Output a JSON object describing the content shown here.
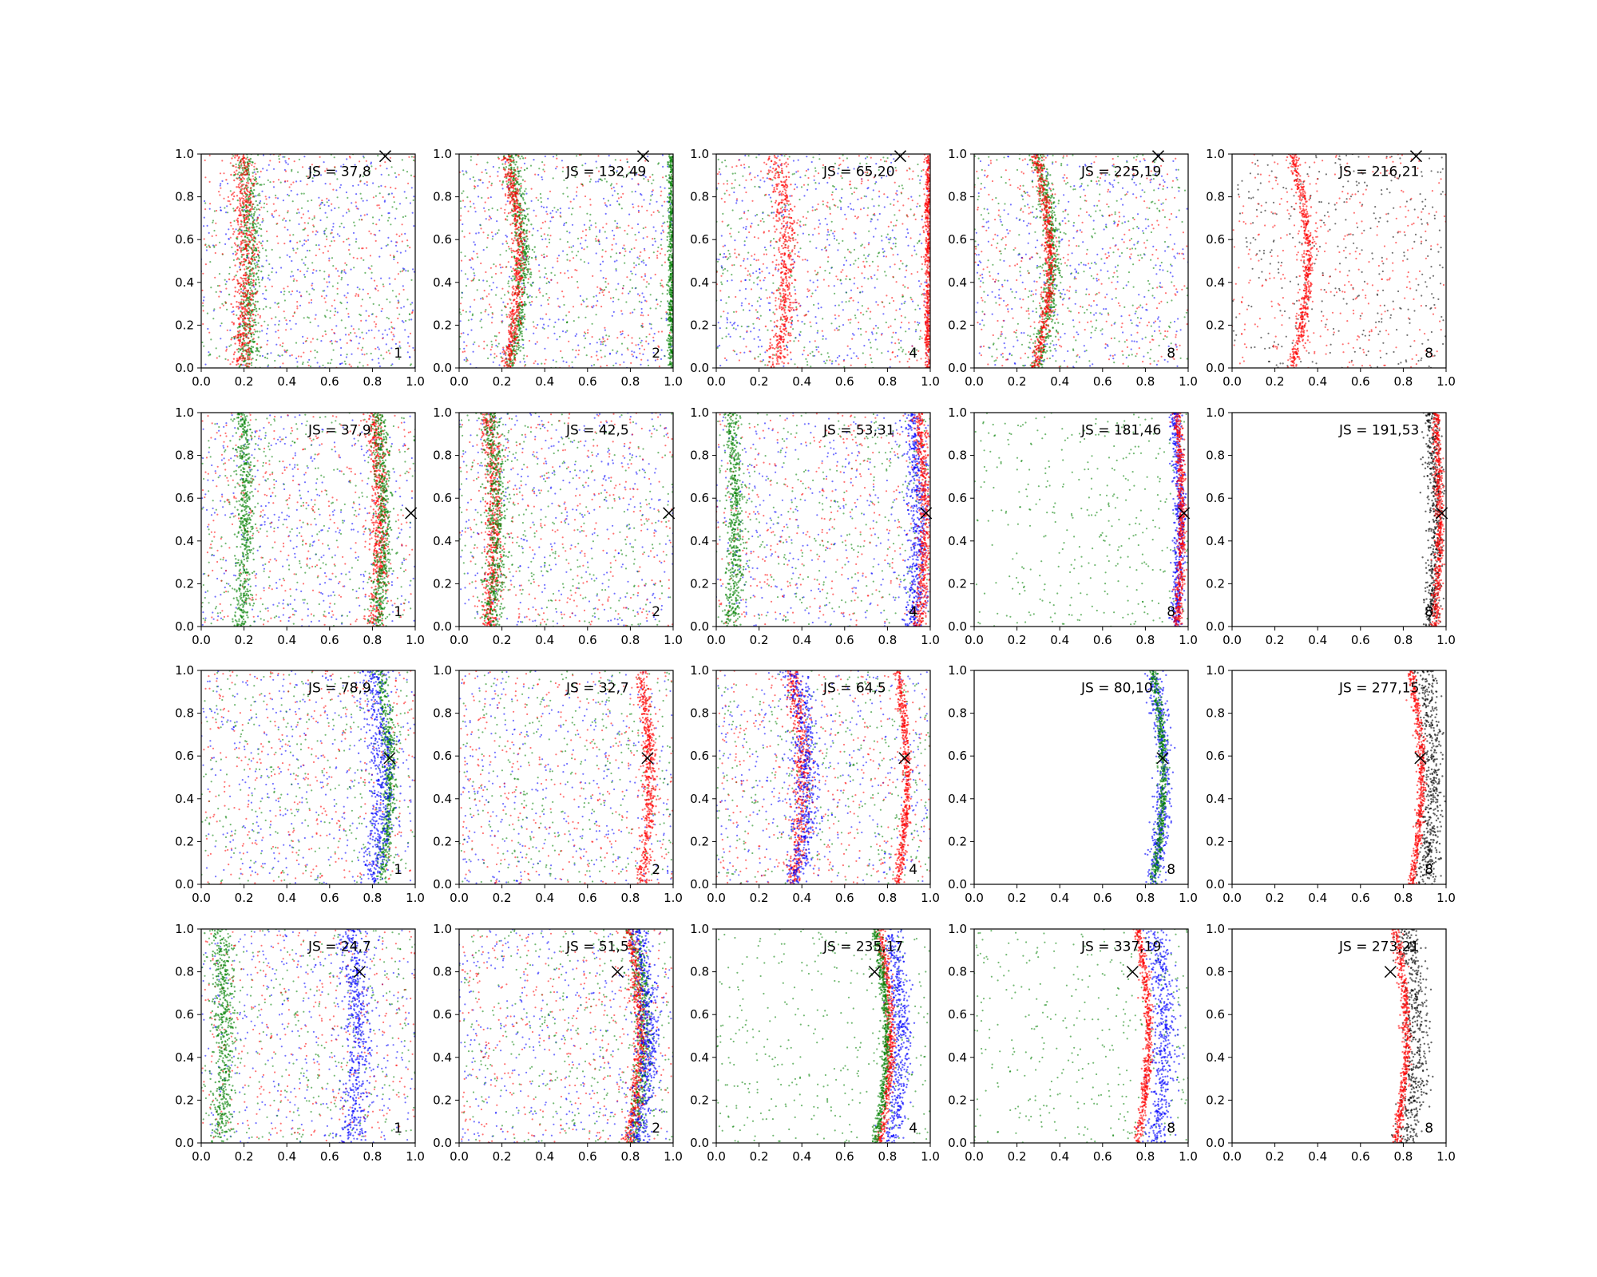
{
  "chart_data": {
    "type": "scatter",
    "layout": {
      "rows": 4,
      "cols": 5
    },
    "xlim": [
      0,
      1
    ],
    "ylim": [
      0,
      1
    ],
    "tick_labels": [
      "0.0",
      "0.2",
      "0.4",
      "0.6",
      "0.8",
      "1.0"
    ],
    "colors": {
      "blue": "#0000ff",
      "green": "#008000",
      "red": "#ff0000",
      "black": "#000000"
    },
    "marker": "x",
    "rows": [
      {
        "marker_point": [
          0.86,
          0.99
        ],
        "panels": [
          {
            "js_text": "JS = 37,8",
            "k_text": "1",
            "colors": [
              "blue",
              "green",
              "red"
            ],
            "bands": [
              {
                "color": "green",
                "center": 0.22,
                "width": 0.05,
                "wave": 0.02
              },
              {
                "color": "red",
                "center": 0.2,
                "width": 0.05,
                "wave": 0.02
              }
            ]
          },
          {
            "js_text": "JS = 132,49",
            "k_text": "2",
            "colors": [
              "blue",
              "green",
              "red"
            ],
            "bands": [
              {
                "color": "green",
                "center": 0.27,
                "width": 0.04,
                "wave": 0.06
              },
              {
                "color": "red",
                "center": 0.25,
                "width": 0.03,
                "wave": 0.06
              },
              {
                "color": "green",
                "center": 0.99,
                "width": 0.015,
                "wave": 0.0
              }
            ]
          },
          {
            "js_text": "JS = 65,20",
            "k_text": "4",
            "colors": [
              "blue",
              "green",
              "red"
            ],
            "bands": [
              {
                "color": "red",
                "center": 0.3,
                "width": 0.05,
                "wave": 0.06
              },
              {
                "color": "red",
                "center": 0.99,
                "width": 0.015,
                "wave": 0.0
              }
            ]
          },
          {
            "js_text": "JS = 225,19",
            "k_text": "8",
            "colors": [
              "blue",
              "green",
              "red"
            ],
            "bands": [
              {
                "color": "green",
                "center": 0.33,
                "width": 0.04,
                "wave": 0.07
              },
              {
                "color": "red",
                "center": 0.32,
                "width": 0.025,
                "wave": 0.07
              }
            ]
          },
          {
            "js_text": "JS = 216,21",
            "k_text": "8",
            "colors": [
              "black",
              "red"
            ],
            "bands": [
              {
                "color": "red",
                "center": 0.32,
                "width": 0.025,
                "wave": 0.07
              }
            ]
          }
        ]
      },
      {
        "marker_point": [
          0.98,
          0.53
        ],
        "panels": [
          {
            "js_text": "JS = 37,9",
            "k_text": "1",
            "colors": [
              "blue",
              "green",
              "red"
            ],
            "bands": [
              {
                "color": "green",
                "center": 0.2,
                "width": 0.04,
                "wave": 0.02
              },
              {
                "color": "red",
                "center": 0.82,
                "width": 0.04,
                "wave": 0.03
              },
              {
                "color": "green",
                "center": 0.84,
                "width": 0.04,
                "wave": 0.03
              }
            ]
          },
          {
            "js_text": "JS = 42,5",
            "k_text": "2",
            "colors": [
              "blue",
              "green",
              "red"
            ],
            "bands": [
              {
                "color": "red",
                "center": 0.15,
                "width": 0.04,
                "wave": 0.03
              },
              {
                "color": "green",
                "center": 0.16,
                "width": 0.05,
                "wave": 0.03
              }
            ]
          },
          {
            "js_text": "JS = 53,31",
            "k_text": "4",
            "colors": [
              "blue",
              "green",
              "red"
            ],
            "bands": [
              {
                "color": "blue",
                "center": 0.93,
                "width": 0.05,
                "wave": 0.03
              },
              {
                "color": "red",
                "center": 0.96,
                "width": 0.03,
                "wave": 0.03
              },
              {
                "color": "green",
                "center": 0.08,
                "width": 0.04,
                "wave": 0.02
              }
            ]
          },
          {
            "js_text": "JS = 181,46",
            "k_text": "8",
            "colors": [
              "green"
            ],
            "bands": [
              {
                "color": "blue",
                "center": 0.95,
                "width": 0.03,
                "wave": 0.02
              },
              {
                "color": "red",
                "center": 0.96,
                "width": 0.02,
                "wave": 0.02
              }
            ]
          },
          {
            "js_text": "JS = 191,53",
            "k_text": "8",
            "colors": [],
            "bands": [
              {
                "color": "black",
                "center": 0.94,
                "width": 0.04,
                "wave": 0.02
              },
              {
                "color": "red",
                "center": 0.96,
                "width": 0.02,
                "wave": 0.02
              }
            ]
          }
        ]
      },
      {
        "marker_point": [
          0.88,
          0.59
        ],
        "panels": [
          {
            "js_text": "JS = 78,9",
            "k_text": "1",
            "colors": [
              "blue",
              "green",
              "red"
            ],
            "bands": [
              {
                "color": "green",
                "center": 0.86,
                "width": 0.03,
                "wave": 0.05
              },
              {
                "color": "blue",
                "center": 0.82,
                "width": 0.06,
                "wave": 0.05
              }
            ]
          },
          {
            "js_text": "JS = 32,7",
            "k_text": "2",
            "colors": [
              "blue",
              "green",
              "red"
            ],
            "bands": [
              {
                "color": "red",
                "center": 0.87,
                "width": 0.03,
                "wave": 0.04
              }
            ]
          },
          {
            "js_text": "JS = 64,5",
            "k_text": "4",
            "colors": [
              "blue",
              "green",
              "red"
            ],
            "bands": [
              {
                "color": "red",
                "center": 0.38,
                "width": 0.04,
                "wave": 0.05
              },
              {
                "color": "blue",
                "center": 0.4,
                "width": 0.06,
                "wave": 0.05
              },
              {
                "color": "red",
                "center": 0.87,
                "width": 0.02,
                "wave": 0.04
              }
            ]
          },
          {
            "js_text": "JS = 80,10",
            "k_text": "8",
            "colors": [],
            "bands": [
              {
                "color": "blue",
                "center": 0.86,
                "width": 0.04,
                "wave": 0.05
              },
              {
                "color": "green",
                "center": 0.86,
                "width": 0.02,
                "wave": 0.05
              }
            ]
          },
          {
            "js_text": "JS = 277,15",
            "k_text": "8",
            "colors": [],
            "bands": [
              {
                "color": "black",
                "center": 0.92,
                "width": 0.05,
                "wave": 0.03
              },
              {
                "color": "red",
                "center": 0.86,
                "width": 0.02,
                "wave": 0.05
              }
            ]
          }
        ]
      },
      {
        "marker_point": [
          0.74,
          0.8
        ],
        "panels": [
          {
            "js_text": "JS = 24,7",
            "k_text": "1",
            "colors": [
              "blue",
              "green",
              "red"
            ],
            "bands": [
              {
                "color": "blue",
                "center": 0.72,
                "width": 0.06,
                "wave": 0.03
              },
              {
                "color": "green",
                "center": 0.1,
                "width": 0.05,
                "wave": 0.02
              }
            ]
          },
          {
            "js_text": "JS = 51,5",
            "k_text": "2",
            "colors": [
              "blue",
              "green",
              "red"
            ],
            "bands": [
              {
                "color": "green",
                "center": 0.84,
                "width": 0.04,
                "wave": 0.05
              },
              {
                "color": "red",
                "center": 0.82,
                "width": 0.03,
                "wave": 0.05
              },
              {
                "color": "blue",
                "center": 0.86,
                "width": 0.05,
                "wave": 0.05
              }
            ]
          },
          {
            "js_text": "JS = 235,17",
            "k_text": "4",
            "colors": [
              "green"
            ],
            "bands": [
              {
                "color": "blue",
                "center": 0.84,
                "width": 0.05,
                "wave": 0.05
              },
              {
                "color": "red",
                "center": 0.79,
                "width": 0.02,
                "wave": 0.05
              },
              {
                "color": "green",
                "center": 0.77,
                "width": 0.02,
                "wave": 0.05
              }
            ]
          },
          {
            "js_text": "JS = 337,19",
            "k_text": "8",
            "colors": [
              "green"
            ],
            "bands": [
              {
                "color": "blue",
                "center": 0.87,
                "width": 0.06,
                "wave": 0.05
              },
              {
                "color": "red",
                "center": 0.79,
                "width": 0.02,
                "wave": 0.05
              }
            ]
          },
          {
            "js_text": "JS = 273,21",
            "k_text": "8",
            "colors": [],
            "bands": [
              {
                "color": "black",
                "center": 0.84,
                "width": 0.06,
                "wave": 0.05
              },
              {
                "color": "red",
                "center": 0.79,
                "width": 0.02,
                "wave": 0.05
              }
            ]
          }
        ]
      }
    ]
  }
}
